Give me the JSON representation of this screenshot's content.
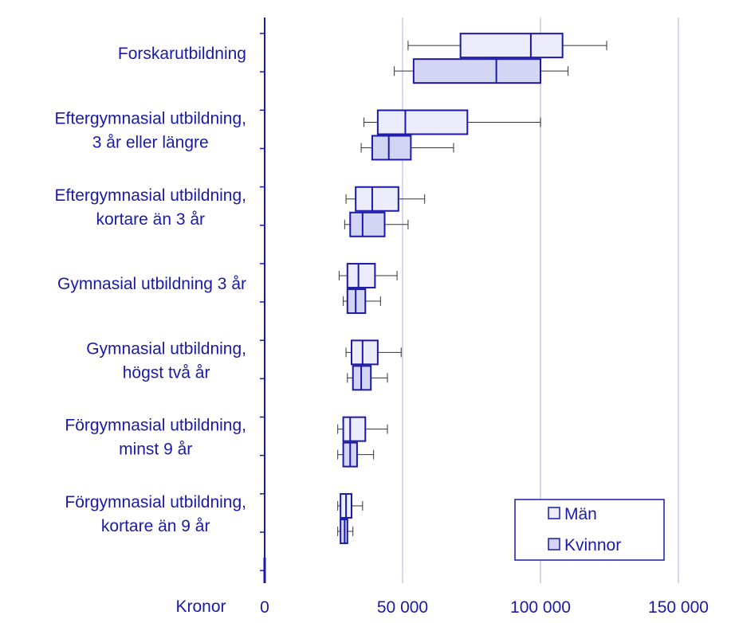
{
  "chart_data": {
    "type": "boxplot",
    "orientation": "horizontal",
    "xlabel": "Kronor",
    "xlim": [
      0,
      150000
    ],
    "xticks": [
      0,
      50000,
      100000,
      150000
    ],
    "xtick_labels": [
      "0",
      "50 000",
      "100 000",
      "150 000"
    ],
    "grid": "vertical",
    "legend_position": "bottom-right",
    "categories": [
      [
        "Forskarutbildning"
      ],
      [
        "Eftergymnasial utbildning,",
        "3 år eller längre"
      ],
      [
        "Eftergymnasial utbildning,",
        "kortare än 3 år"
      ],
      [
        "Gymnasial utbildning 3 år"
      ],
      [
        "Gymnasial utbildning,",
        "högst två år"
      ],
      [
        "Förgymnasial utbildning,",
        "minst 9 år"
      ],
      [
        "Förgymnasial utbildning,",
        "kortare än 9 år"
      ]
    ],
    "series": [
      {
        "name": "Män",
        "color": "#ececfc",
        "boxes": [
          [
            52000,
            71000,
            96500,
            108000,
            124000
          ],
          [
            36000,
            41000,
            51000,
            73500,
            100000
          ],
          [
            29500,
            33000,
            39000,
            48500,
            58000
          ],
          [
            27000,
            30000,
            34000,
            40000,
            48000
          ],
          [
            29500,
            31500,
            35500,
            41000,
            49500
          ],
          [
            26500,
            28500,
            31000,
            36500,
            44500
          ],
          [
            26500,
            27500,
            29500,
            31500,
            35500
          ]
        ]
      },
      {
        "name": "Kvinnor",
        "color": "#d4d4f5",
        "boxes": [
          [
            47000,
            54000,
            84000,
            100000,
            110000
          ],
          [
            35000,
            39000,
            45000,
            53000,
            68500
          ],
          [
            29000,
            31000,
            35500,
            43500,
            52000
          ],
          [
            28500,
            30000,
            33000,
            36500,
            42000
          ],
          [
            30000,
            32000,
            35000,
            38500,
            44500
          ],
          [
            26500,
            28500,
            31000,
            33500,
            39500
          ],
          [
            26500,
            27500,
            29000,
            30000,
            32000
          ]
        ]
      }
    ]
  },
  "colors": {
    "axis": "#1a1aa6",
    "box_stroke": "#1a1aa6",
    "whisker": "#333333",
    "gridline": "#c8c8ea"
  }
}
